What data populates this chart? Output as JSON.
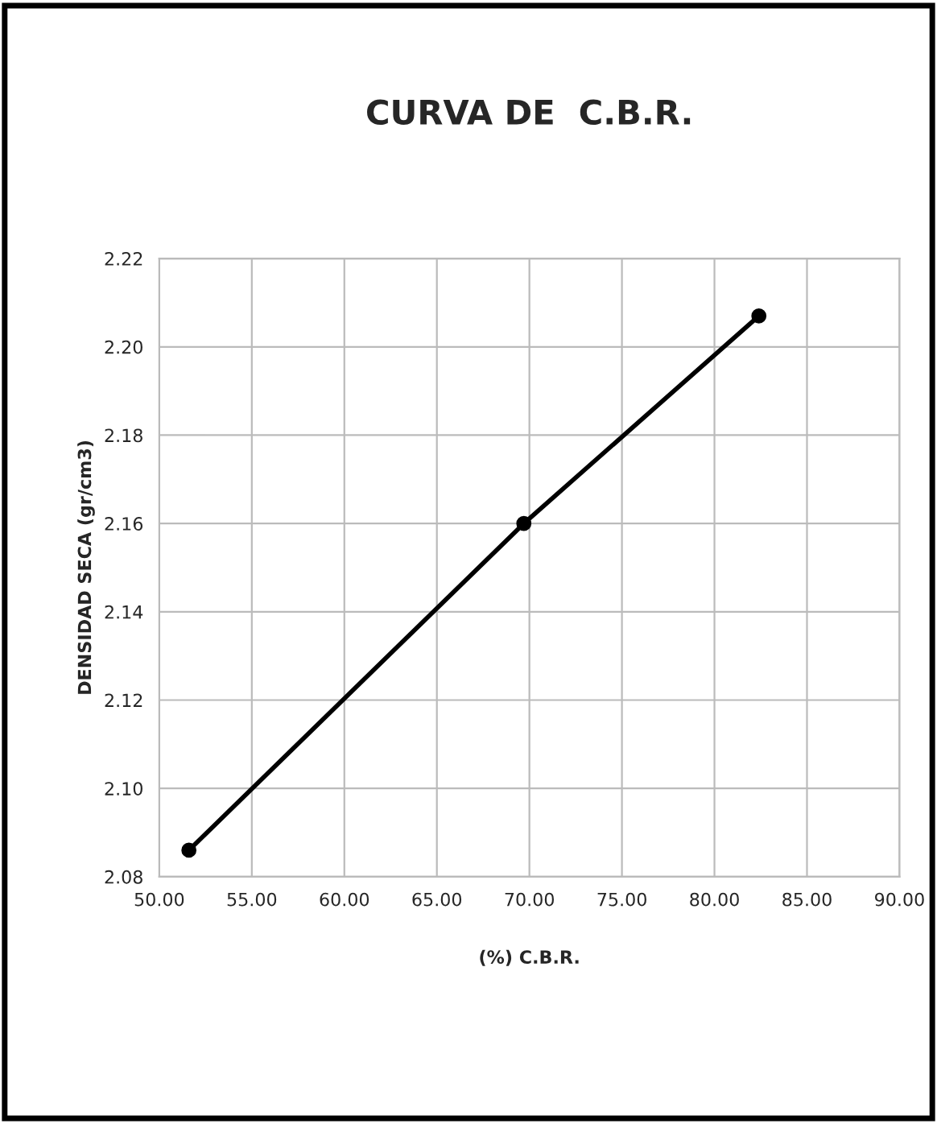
{
  "chart_data": {
    "type": "line",
    "title": "CURVA DE  C.B.R.",
    "xlabel": "(%) C.B.R.",
    "ylabel": "DENSIDAD SECA (gr/cm3)",
    "x": [
      51.6,
      69.7,
      82.4
    ],
    "series": [
      {
        "color": "#000000",
        "values": [
          2.086,
          2.16,
          2.207
        ]
      }
    ],
    "xlim": [
      50,
      90
    ],
    "xticks": [
      {
        "value": 50,
        "label": "50.00"
      },
      {
        "value": 55,
        "label": "55.00"
      },
      {
        "value": 60,
        "label": "60.00"
      },
      {
        "value": 65,
        "label": "65.00"
      },
      {
        "value": 70,
        "label": "70.00"
      },
      {
        "value": 75,
        "label": "75.00"
      },
      {
        "value": 80,
        "label": "80.00"
      },
      {
        "value": 85,
        "label": "85.00"
      },
      {
        "value": 90,
        "label": "90.00"
      }
    ],
    "ylim": [
      2.08,
      2.22
    ],
    "yticks": [
      {
        "value": 2.08,
        "label": "2.08"
      },
      {
        "value": 2.1,
        "label": "2.10"
      },
      {
        "value": 2.12,
        "label": "2.12"
      },
      {
        "value": 2.14,
        "label": "2.14"
      },
      {
        "value": 2.16,
        "label": "2.16"
      },
      {
        "value": 2.18,
        "label": "2.18"
      },
      {
        "value": 2.2,
        "label": "2.20"
      },
      {
        "value": 2.22,
        "label": "2.22"
      }
    ],
    "grid": true,
    "marker": "circle",
    "line_style": "solid"
  }
}
